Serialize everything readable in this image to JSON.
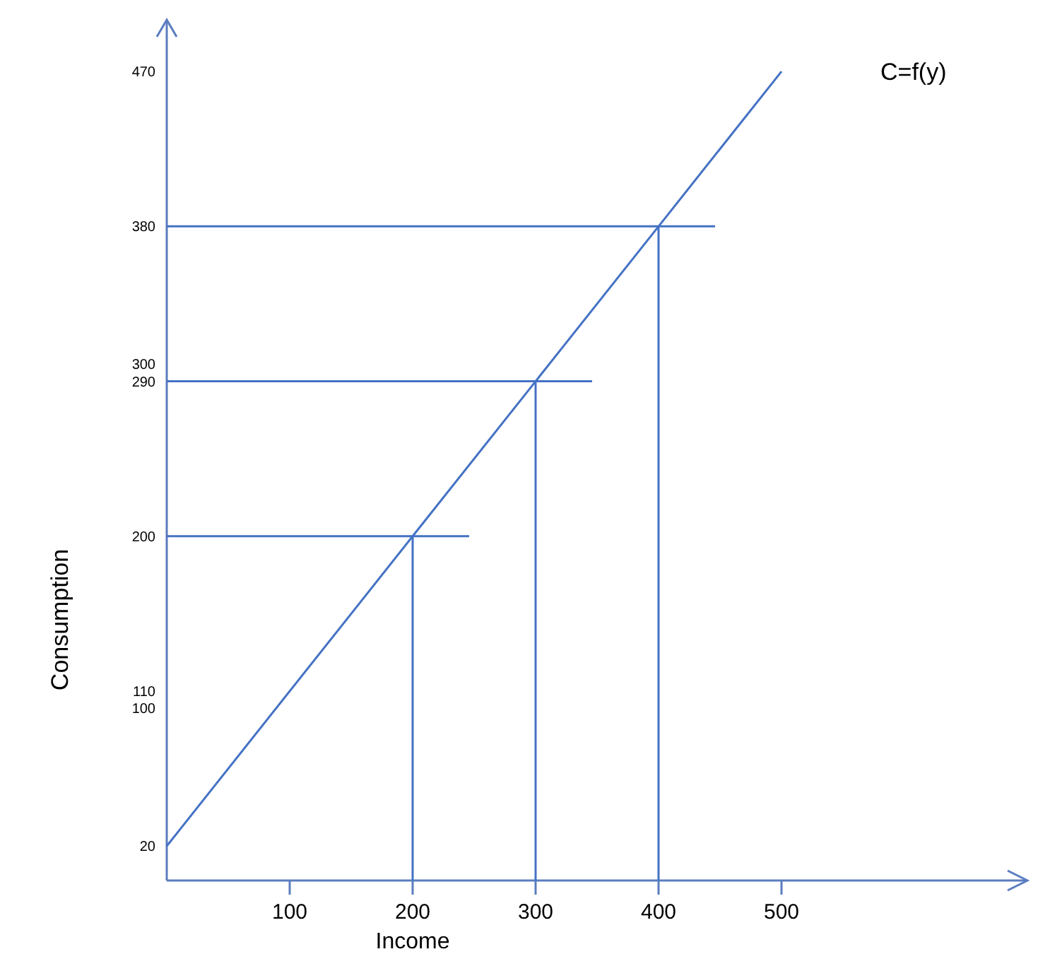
{
  "chart_data": {
    "type": "line",
    "xlabel": "Income",
    "ylabel": "Consumption",
    "xlim": [
      0,
      700
    ],
    "ylim": [
      0,
      500
    ],
    "xticks": [
      100,
      200,
      300,
      400,
      500
    ],
    "yticks": [
      20,
      100,
      110,
      200,
      290,
      300,
      380,
      470
    ],
    "series": [
      {
        "name": "C=f(y)",
        "color": "#4472c4",
        "x": [
          0,
          200,
          300,
          400,
          500
        ],
        "values": [
          20,
          200,
          290,
          380,
          470
        ]
      }
    ],
    "ref_lines": [
      {
        "axis": "y",
        "value": 200,
        "color": "#4472c4"
      },
      {
        "axis": "y",
        "value": 290,
        "color": "#4472c4"
      },
      {
        "axis": "y",
        "value": 380,
        "color": "#4472c4"
      },
      {
        "axis": "x",
        "value": 200,
        "color": "#4472c4"
      },
      {
        "axis": "x",
        "value": 300,
        "color": "#4472c4"
      },
      {
        "axis": "x",
        "value": 400,
        "color": "#4472c4"
      }
    ],
    "marker": "none",
    "line_style": "solid",
    "grid": false
  }
}
